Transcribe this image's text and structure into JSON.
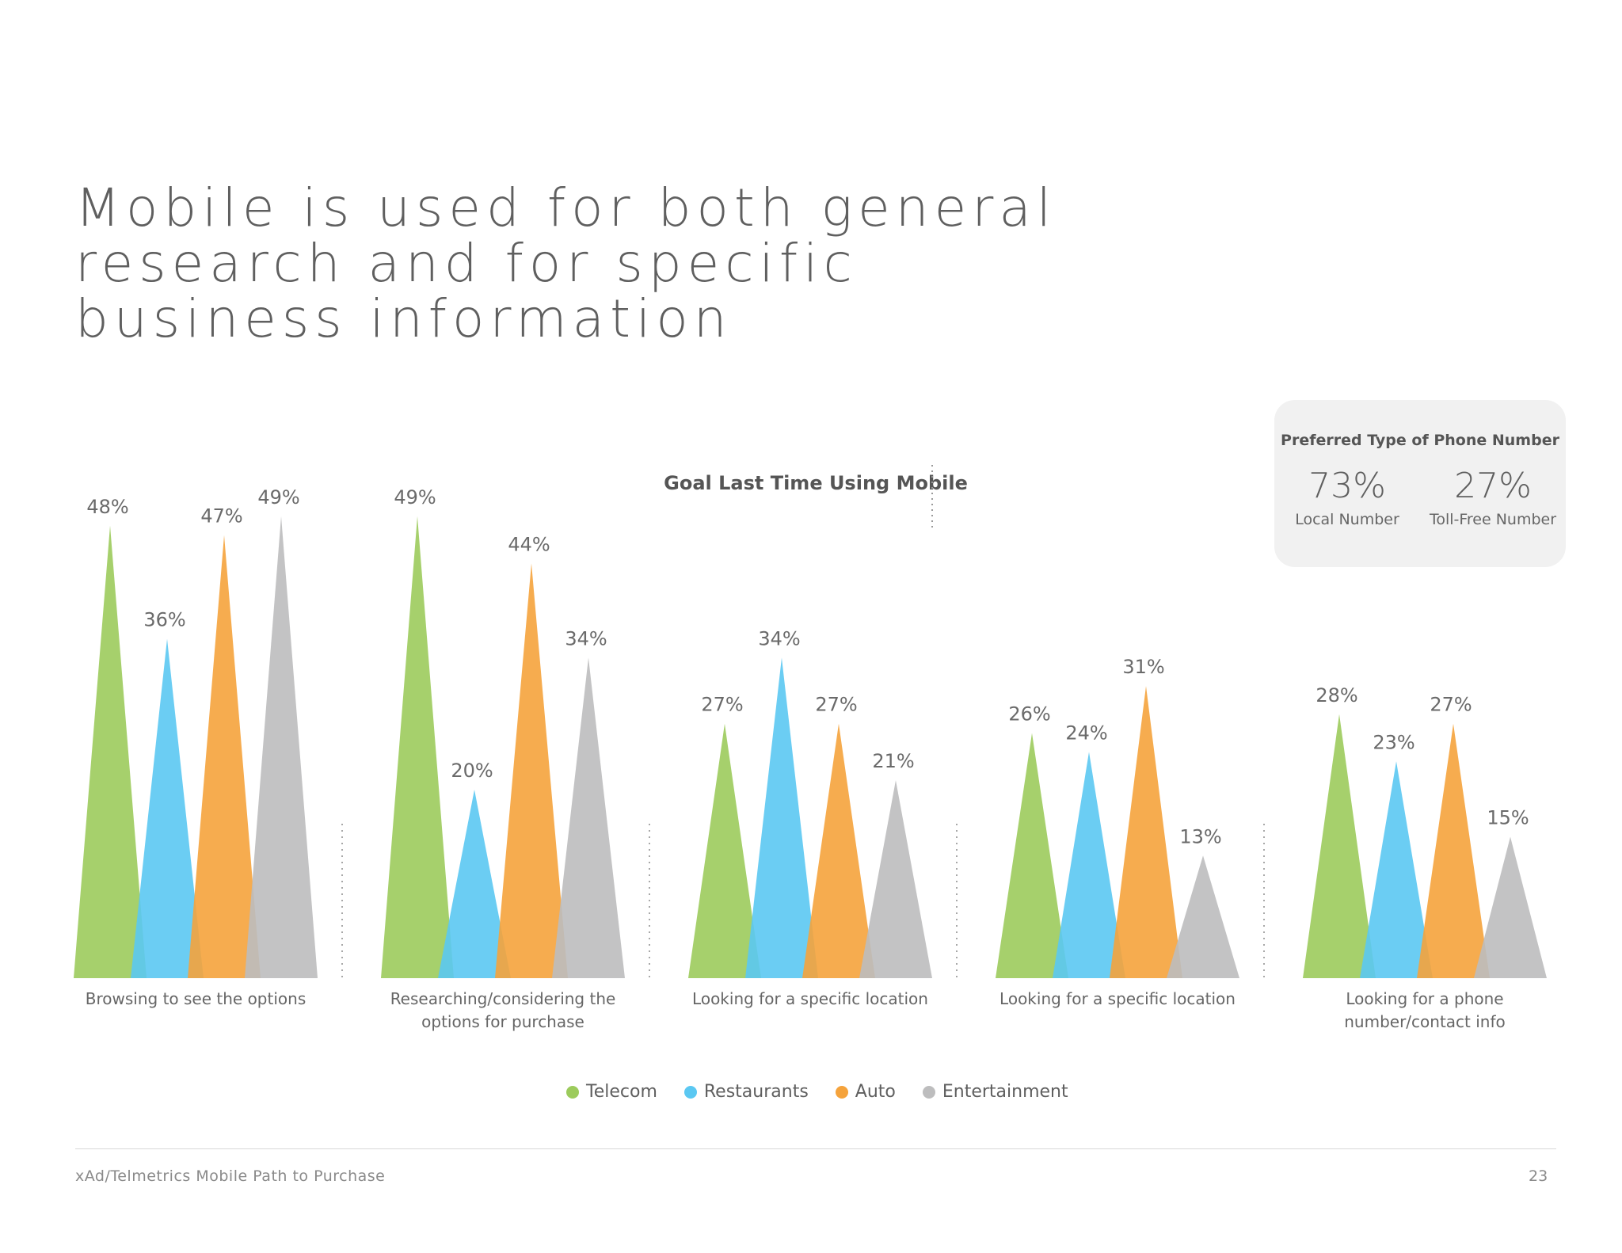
{
  "page": {
    "title_lines": [
      "Mobile is used for both general",
      "research and for specific",
      "business information"
    ],
    "footer_source": "xAd/Telmetrics Mobile Path to Purchase",
    "page_number": "23"
  },
  "phone_box": {
    "title": "Preferred Type of Phone Number",
    "local_pct": "73%",
    "local_label": "Local Number",
    "tollfree_pct": "27%",
    "tollfree_label": "Toll-Free Number"
  },
  "chart_data": {
    "type": "bar",
    "title": "Goal Last Time Using Mobile",
    "categories": [
      "Browsing to see the options",
      "Researching/considering the options for purchase",
      "Looking for a specific location",
      "Looking for a specific location",
      "Looking for a phone number/contact info"
    ],
    "category_lines": [
      [
        "Browsing to see the options"
      ],
      [
        "Researching/considering the",
        "options for purchase"
      ],
      [
        "Looking for a specific location"
      ],
      [
        "Looking for a specific location"
      ],
      [
        "Looking for a phone",
        "number/contact info"
      ]
    ],
    "series": [
      {
        "name": "Telecom",
        "color": "#9ccb5c",
        "values": [
          48,
          49,
          27,
          26,
          28
        ]
      },
      {
        "name": "Restaurants",
        "color": "#5bc8f2",
        "values": [
          36,
          20,
          34,
          24,
          23
        ]
      },
      {
        "name": "Auto",
        "color": "#f5a33c",
        "values": [
          47,
          44,
          27,
          31,
          27
        ]
      },
      {
        "name": "Entertainment",
        "color": "#bdbdbe",
        "values": [
          49,
          34,
          21,
          13,
          15
        ]
      }
    ],
    "value_suffix": "%",
    "ylim": [
      0,
      50
    ],
    "grid": false,
    "legend_position": "bottom-center"
  }
}
